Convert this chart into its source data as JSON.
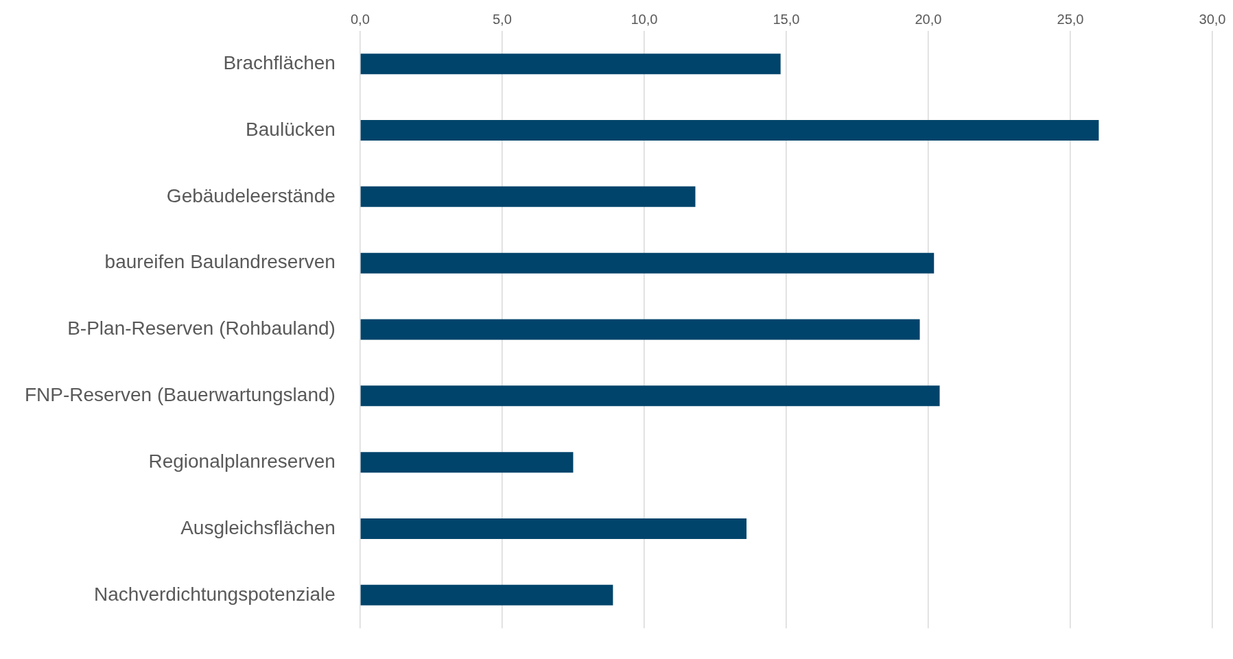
{
  "chart_data": {
    "type": "bar",
    "orientation": "horizontal",
    "categories": [
      "Brachflächen",
      "Baulücken",
      "Gebäudeleerstände",
      "baureifen Baulandreserven",
      "B-Plan-Reserven (Rohbauland)",
      "FNP-Reserven (Bauerwartungsland)",
      "Regionalplanreserven",
      "Ausgleichsflächen",
      "Nachverdichtungspotenziale"
    ],
    "values": [
      14.8,
      26.0,
      11.8,
      20.2,
      19.7,
      20.4,
      7.5,
      13.6,
      8.9
    ],
    "color": "#00446b",
    "xlim": [
      0,
      30
    ],
    "xticks": [
      {
        "value": 0,
        "label": "0,0"
      },
      {
        "value": 5,
        "label": "5,0"
      },
      {
        "value": 10,
        "label": "10,0"
      },
      {
        "value": 15,
        "label": "15,0"
      },
      {
        "value": 20,
        "label": "20,0"
      },
      {
        "value": 25,
        "label": "25,0"
      },
      {
        "value": 30,
        "label": "30,0"
      }
    ],
    "grid": "x"
  }
}
